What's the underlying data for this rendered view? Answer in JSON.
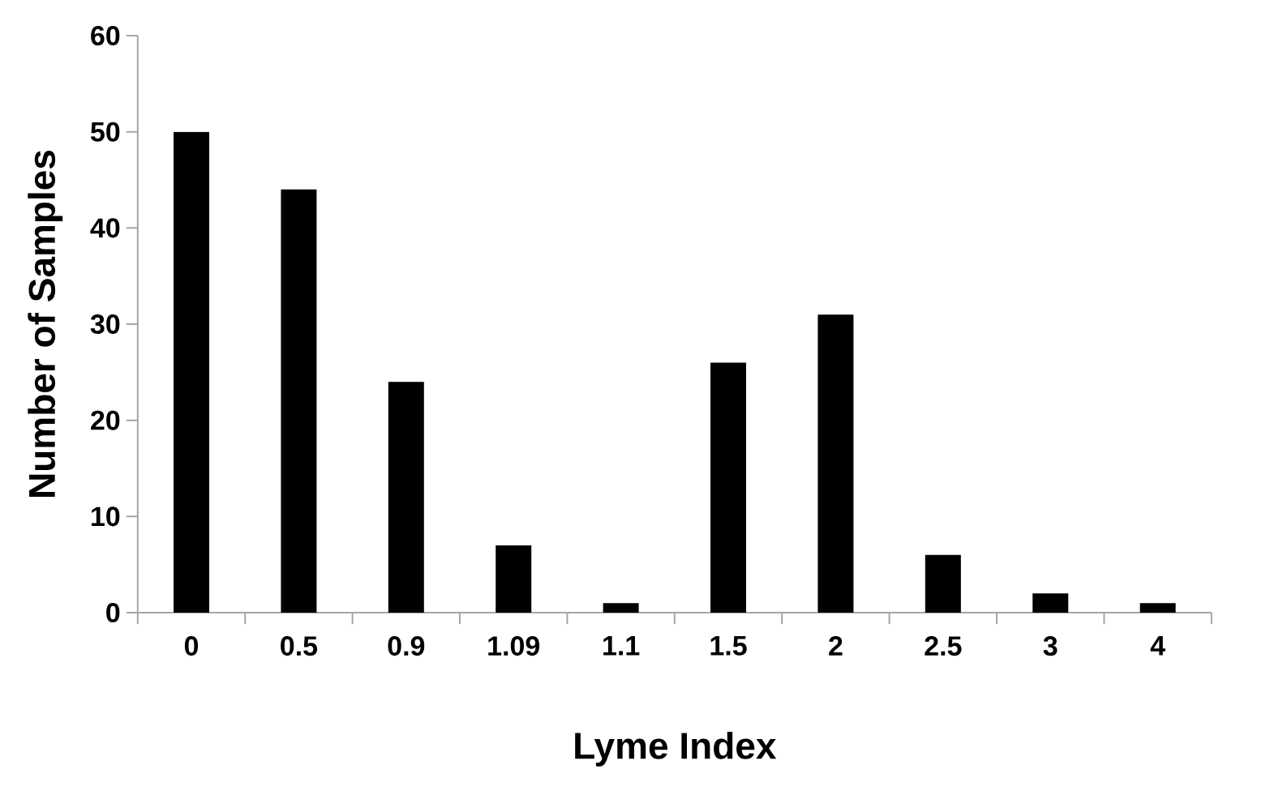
{
  "chart_data": {
    "type": "bar",
    "xlabel": "Lyme Index",
    "ylabel": "Number of Samples",
    "categories": [
      "0",
      "0.5",
      "0.9",
      "1.09",
      "1.1",
      "1.5",
      "2",
      "2.5",
      "3",
      "4"
    ],
    "values": [
      50,
      44,
      24,
      7,
      1,
      26,
      31,
      6,
      2,
      1
    ],
    "color": "#000000",
    "ylim": [
      0,
      60
    ],
    "yticks": [
      0,
      10,
      20,
      30,
      40,
      50,
      60
    ],
    "grid": false
  }
}
